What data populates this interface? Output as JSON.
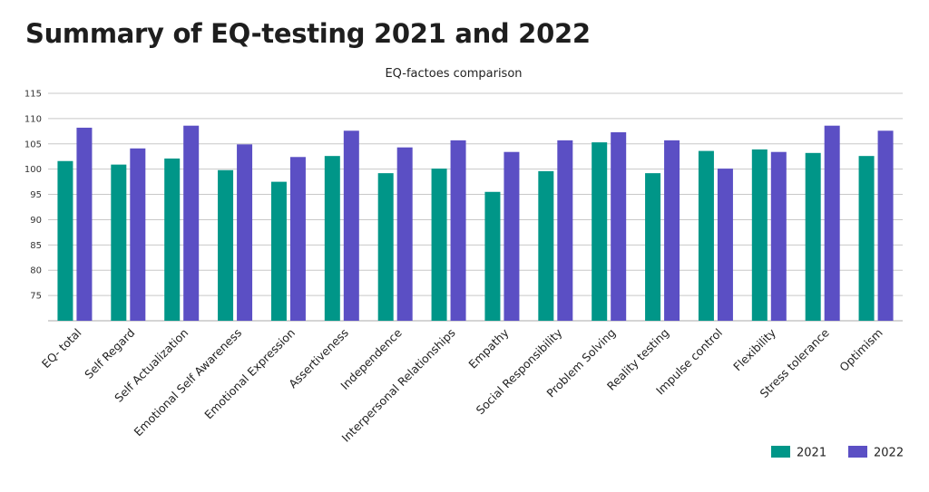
{
  "title": "Summary of EQ-testing 2021 and 2022",
  "colors": {
    "series_2021": "#009688",
    "series_2022": "#5b4fc4",
    "grid": "#c8c8c8"
  },
  "chart_data": {
    "type": "bar",
    "title": "EQ-factoes comparison",
    "xlabel": "",
    "ylabel": "",
    "ylim": [
      70,
      115
    ],
    "yticks": [
      75,
      80,
      85,
      90,
      95,
      100,
      105,
      110,
      115
    ],
    "grid": true,
    "legend_position": "bottom-right",
    "categories": [
      "EQ- total",
      "Self Regard",
      "Self Actualization",
      "Emotional Self Awareness",
      "Emotional Expression",
      "Assertiveness",
      "Independence",
      "Interpersonal Relationships",
      "Empathy",
      "Social Responsibility",
      "Problem Solving",
      "Reality testing",
      "Impulse control",
      "Flexibility",
      "Stress tolerance",
      "Optimism"
    ],
    "series": [
      {
        "name": "2021",
        "values": [
          101.6,
          100.9,
          102.1,
          99.8,
          97.5,
          102.6,
          99.2,
          100.1,
          95.5,
          99.6,
          105.3,
          99.2,
          103.6,
          103.9,
          103.2,
          102.6
        ]
      },
      {
        "name": "2022",
        "values": [
          108.2,
          104.1,
          108.6,
          104.9,
          102.4,
          107.6,
          104.3,
          105.7,
          103.4,
          105.7,
          107.3,
          105.7,
          100.1,
          103.4,
          108.6,
          107.6
        ]
      }
    ]
  }
}
